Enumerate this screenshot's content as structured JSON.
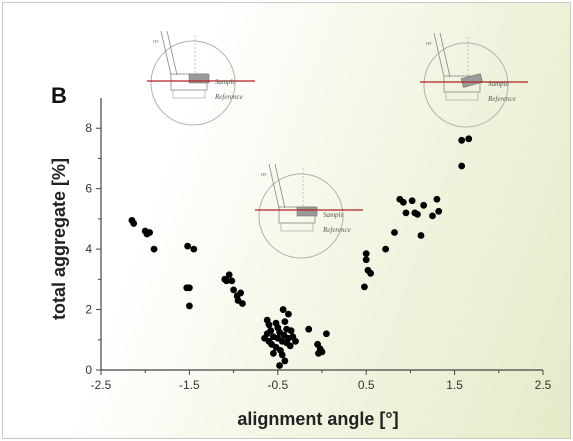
{
  "chart_data": {
    "type": "scatter",
    "panel_label": "B",
    "xlabel": "alignment angle [°]",
    "ylabel": "total aggregate [%]",
    "xlim": [
      -2.5,
      2.5
    ],
    "ylim": [
      0,
      9
    ],
    "xticks": [
      -2.5,
      -1.5,
      -0.5,
      0.5,
      1.5,
      2.5
    ],
    "yticks": [
      0,
      2,
      4,
      6,
      8
    ],
    "grid": false,
    "marker_color": "#000000",
    "points": [
      {
        "x": -2.15,
        "y": 4.95
      },
      {
        "x": -2.13,
        "y": 4.85
      },
      {
        "x": -2.0,
        "y": 4.6
      },
      {
        "x": -1.98,
        "y": 4.5
      },
      {
        "x": -1.95,
        "y": 4.55
      },
      {
        "x": -1.9,
        "y": 4.0
      },
      {
        "x": -1.52,
        "y": 4.1
      },
      {
        "x": -1.45,
        "y": 4.0
      },
      {
        "x": -1.5,
        "y": 2.72
      },
      {
        "x": -1.53,
        "y": 2.72
      },
      {
        "x": -1.5,
        "y": 2.12
      },
      {
        "x": -1.1,
        "y": 3.0
      },
      {
        "x": -1.05,
        "y": 3.15
      },
      {
        "x": -1.02,
        "y": 2.95
      },
      {
        "x": -1.08,
        "y": 2.95
      },
      {
        "x": -1.0,
        "y": 2.65
      },
      {
        "x": -0.96,
        "y": 2.45
      },
      {
        "x": -0.92,
        "y": 2.55
      },
      {
        "x": -0.95,
        "y": 2.3
      },
      {
        "x": -0.9,
        "y": 2.2
      },
      {
        "x": -0.62,
        "y": 1.65
      },
      {
        "x": -0.6,
        "y": 1.5
      },
      {
        "x": -0.58,
        "y": 1.3
      },
      {
        "x": -0.62,
        "y": 1.2
      },
      {
        "x": -0.55,
        "y": 1.1
      },
      {
        "x": -0.6,
        "y": 0.95
      },
      {
        "x": -0.57,
        "y": 0.85
      },
      {
        "x": -0.52,
        "y": 1.55
      },
      {
        "x": -0.5,
        "y": 1.4
      },
      {
        "x": -0.48,
        "y": 1.25
      },
      {
        "x": -0.5,
        "y": 1.05
      },
      {
        "x": -0.45,
        "y": 0.95
      },
      {
        "x": -0.52,
        "y": 0.75
      },
      {
        "x": -0.47,
        "y": 0.65
      },
      {
        "x": -0.42,
        "y": 1.6
      },
      {
        "x": -0.4,
        "y": 1.35
      },
      {
        "x": -0.43,
        "y": 1.15
      },
      {
        "x": -0.4,
        "y": 0.9
      },
      {
        "x": -0.38,
        "y": 1.05
      },
      {
        "x": -0.45,
        "y": 0.5
      },
      {
        "x": -0.42,
        "y": 0.3
      },
      {
        "x": -0.48,
        "y": 0.15
      },
      {
        "x": -0.35,
        "y": 1.3
      },
      {
        "x": -0.33,
        "y": 1.1
      },
      {
        "x": -0.36,
        "y": 0.8
      },
      {
        "x": -0.44,
        "y": 2.0
      },
      {
        "x": -0.38,
        "y": 1.85
      },
      {
        "x": -0.55,
        "y": 0.55
      },
      {
        "x": -0.3,
        "y": 0.95
      },
      {
        "x": -0.65,
        "y": 1.05
      },
      {
        "x": -0.15,
        "y": 1.35
      },
      {
        "x": -0.05,
        "y": 0.85
      },
      {
        "x": -0.02,
        "y": 0.7
      },
      {
        "x": -0.04,
        "y": 0.55
      },
      {
        "x": 0.0,
        "y": 0.6
      },
      {
        "x": 0.05,
        "y": 1.2
      },
      {
        "x": 0.5,
        "y": 3.85
      },
      {
        "x": 0.5,
        "y": 3.65
      },
      {
        "x": 0.52,
        "y": 3.3
      },
      {
        "x": 0.55,
        "y": 3.2
      },
      {
        "x": 0.48,
        "y": 2.75
      },
      {
        "x": 0.72,
        "y": 4.0
      },
      {
        "x": 0.82,
        "y": 4.55
      },
      {
        "x": 0.88,
        "y": 5.65
      },
      {
        "x": 0.92,
        "y": 5.55
      },
      {
        "x": 1.02,
        "y": 5.6
      },
      {
        "x": 1.05,
        "y": 5.2
      },
      {
        "x": 1.08,
        "y": 5.15
      },
      {
        "x": 1.12,
        "y": 4.45
      },
      {
        "x": 1.15,
        "y": 5.45
      },
      {
        "x": 1.25,
        "y": 5.1
      },
      {
        "x": 1.3,
        "y": 5.65
      },
      {
        "x": 1.32,
        "y": 5.25
      },
      {
        "x": 0.95,
        "y": 5.2
      },
      {
        "x": 1.58,
        "y": 7.6
      },
      {
        "x": 1.66,
        "y": 7.65
      },
      {
        "x": 1.58,
        "y": 6.75
      }
    ],
    "insets": [
      {
        "labels": [
          "HF",
          "Sample",
          "Reference"
        ]
      },
      {
        "labels": [
          "HF",
          "Sample",
          "Reference"
        ]
      },
      {
        "labels": [
          "HF",
          "Sample",
          "Reference"
        ]
      }
    ]
  }
}
